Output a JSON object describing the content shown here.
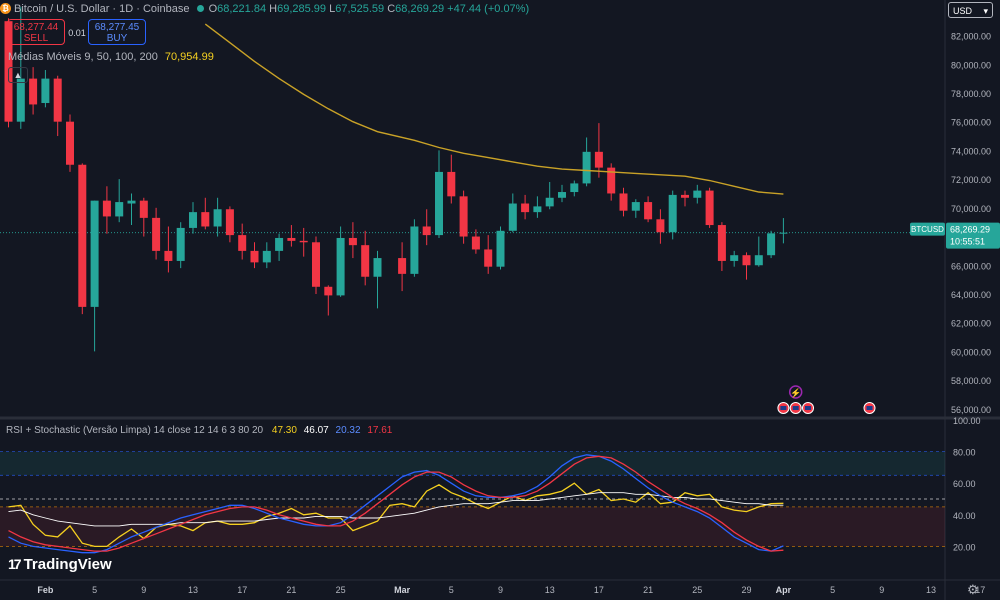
{
  "header": {
    "symbol_title": "Bitcoin / U.S. Dollar · 1D · Coinbase",
    "ohlc": [
      {
        "key": "O",
        "value": "68,221.84"
      },
      {
        "key": "H",
        "value": "69,285.99"
      },
      {
        "key": "L",
        "value": "67,525.59"
      },
      {
        "key": "C",
        "value": "68,269.29"
      }
    ],
    "change": "+47.44 (+0.07%)",
    "sell_price": "68,277.44",
    "sell_label": "SELL",
    "spread": "0.01",
    "buy_price": "68,277.45",
    "buy_label": "BUY",
    "ma_label": "Médias Móveis 9, 50, 100, 200",
    "ma_value": "70,954.99",
    "collapse_icon": "chevron-up-icon"
  },
  "currency": "USD",
  "price_tag": {
    "symbol": "BTCUSD",
    "price": "68,269.29",
    "countdown": "10:55:51"
  },
  "rsi_legend": {
    "label": "RSI + Stochastic (Versão Limpa) 14 close 12 14 6 3 80 20",
    "values": [
      {
        "value": "47.30",
        "color": "#f5d020"
      },
      {
        "value": "46.07",
        "color": "#ffffff"
      },
      {
        "value": "20.32",
        "color": "#2962ff"
      },
      {
        "value": "17.61",
        "color": "#f23645"
      }
    ]
  },
  "brand": "TradingView",
  "colors": {
    "up": "#26a69a",
    "down": "#f23645",
    "ma": "#c9a227",
    "bg": "#131722",
    "accent": "#2962ff"
  },
  "chart_data": [
    {
      "type": "candlestick",
      "title": "Bitcoin / U.S. Dollar · 1D · Coinbase",
      "y_ticks": [
        "82,000.00",
        "80,000.00",
        "78,000.00",
        "76,000.00",
        "74,000.00",
        "72,000.00",
        "70,000.00",
        "66,000.00",
        "64,000.00",
        "62,000.00",
        "60,000.00",
        "58,000.00",
        "56,000.00"
      ],
      "x_ticks": [
        {
          "label": "Feb",
          "date": "Feb 1"
        },
        {
          "label": "5",
          "date": "Feb 5"
        },
        {
          "label": "9",
          "date": "Feb 9"
        },
        {
          "label": "13",
          "date": "Feb 13"
        },
        {
          "label": "17",
          "date": "Feb 17"
        },
        {
          "label": "21",
          "date": "Feb 21"
        },
        {
          "label": "25",
          "date": "Feb 25"
        },
        {
          "label": "Mar",
          "date": "Mar 1"
        },
        {
          "label": "5",
          "date": "Mar 5"
        },
        {
          "label": "9",
          "date": "Mar 9"
        },
        {
          "label": "13",
          "date": "Mar 13"
        },
        {
          "label": "17",
          "date": "Mar 17"
        },
        {
          "label": "21",
          "date": "Mar 21"
        },
        {
          "label": "25",
          "date": "Mar 25"
        },
        {
          "label": "29",
          "date": "Mar 29"
        },
        {
          "label": "Apr",
          "date": "Apr 1"
        },
        {
          "label": "5",
          "date": "Apr 5"
        },
        {
          "label": "9",
          "date": "Apr 9"
        },
        {
          "label": "13",
          "date": "Apr 13"
        },
        {
          "label": "17",
          "date": "Apr 17"
        }
      ],
      "ylim": [
        55500,
        83500
      ],
      "last_price": 68269.29,
      "candles": [
        {
          "date": "Jan 29",
          "o": 83000,
          "h": 83200,
          "l": 75600,
          "c": 76000
        },
        {
          "date": "Jan 30",
          "o": 76000,
          "h": 84000,
          "l": 75500,
          "c": 79000
        },
        {
          "date": "Jan 31",
          "o": 79000,
          "h": 79800,
          "l": 76500,
          "c": 77200
        },
        {
          "date": "Feb 1",
          "o": 77300,
          "h": 79600,
          "l": 77000,
          "c": 79000
        },
        {
          "date": "Feb 2",
          "o": 79000,
          "h": 79200,
          "l": 75000,
          "c": 76000
        },
        {
          "date": "Feb 3",
          "o": 76000,
          "h": 76500,
          "l": 72500,
          "c": 73000
        },
        {
          "date": "Feb 4",
          "o": 73000,
          "h": 73100,
          "l": 62600,
          "c": 63100
        },
        {
          "date": "Feb 5",
          "o": 63100,
          "h": 70500,
          "l": 60000,
          "c": 70500
        },
        {
          "date": "Feb 6",
          "o": 70500,
          "h": 71500,
          "l": 68200,
          "c": 69400
        },
        {
          "date": "Feb 7",
          "o": 69400,
          "h": 72000,
          "l": 69000,
          "c": 70400
        },
        {
          "date": "Feb 8",
          "o": 70300,
          "h": 71000,
          "l": 68800,
          "c": 70500
        },
        {
          "date": "Feb 9",
          "o": 70500,
          "h": 70700,
          "l": 68000,
          "c": 69300
        },
        {
          "date": "Feb 10",
          "o": 69300,
          "h": 70000,
          "l": 66400,
          "c": 67000
        },
        {
          "date": "Feb 11",
          "o": 67000,
          "h": 68700,
          "l": 65500,
          "c": 66300
        },
        {
          "date": "Feb 12",
          "o": 66300,
          "h": 69000,
          "l": 65800,
          "c": 68600
        },
        {
          "date": "Feb 13",
          "o": 68600,
          "h": 70400,
          "l": 68200,
          "c": 69700
        },
        {
          "date": "Feb 14",
          "o": 69700,
          "h": 70700,
          "l": 68500,
          "c": 68700
        },
        {
          "date": "Feb 15",
          "o": 68700,
          "h": 70700,
          "l": 68000,
          "c": 69900
        },
        {
          "date": "Feb 16",
          "o": 69900,
          "h": 70100,
          "l": 67600,
          "c": 68100
        },
        {
          "date": "Feb 17",
          "o": 68100,
          "h": 68900,
          "l": 66400,
          "c": 67000
        },
        {
          "date": "Feb 18",
          "o": 67000,
          "h": 67600,
          "l": 65800,
          "c": 66200
        },
        {
          "date": "Feb 19",
          "o": 66200,
          "h": 67600,
          "l": 65800,
          "c": 67000
        },
        {
          "date": "Feb 20",
          "o": 67000,
          "h": 68200,
          "l": 66300,
          "c": 67900
        },
        {
          "date": "Feb 21",
          "o": 67900,
          "h": 68800,
          "l": 67300,
          "c": 67700
        },
        {
          "date": "Feb 22",
          "o": 67700,
          "h": 68600,
          "l": 66600,
          "c": 67600
        },
        {
          "date": "Feb 23",
          "o": 67600,
          "h": 68000,
          "l": 64000,
          "c": 64500
        },
        {
          "date": "Feb 24",
          "o": 64500,
          "h": 64600,
          "l": 62500,
          "c": 63900
        },
        {
          "date": "Feb 25",
          "o": 63900,
          "h": 68700,
          "l": 63800,
          "c": 67900
        },
        {
          "date": "Feb 26",
          "o": 67900,
          "h": 69000,
          "l": 66500,
          "c": 67400
        },
        {
          "date": "Feb 27",
          "o": 67400,
          "h": 68400,
          "l": 64600,
          "c": 65200
        },
        {
          "date": "Feb 28",
          "o": 65200,
          "h": 67000,
          "l": 63000,
          "c": 66500
        },
        {
          "date": "Mar 1",
          "o": 66500,
          "h": 67600,
          "l": 64200,
          "c": 65400
        },
        {
          "date": "Mar 2",
          "o": 65400,
          "h": 69200,
          "l": 65200,
          "c": 68700
        },
        {
          "date": "Mar 3",
          "o": 68700,
          "h": 69900,
          "l": 67400,
          "c": 68100
        },
        {
          "date": "Mar 4",
          "o": 68100,
          "h": 74000,
          "l": 67900,
          "c": 72500
        },
        {
          "date": "Mar 5",
          "o": 72500,
          "h": 73700,
          "l": 70300,
          "c": 70800
        },
        {
          "date": "Mar 6",
          "o": 70800,
          "h": 71200,
          "l": 67500,
          "c": 68000
        },
        {
          "date": "Mar 7",
          "o": 68000,
          "h": 68500,
          "l": 66800,
          "c": 67100
        },
        {
          "date": "Mar 8",
          "o": 67100,
          "h": 68100,
          "l": 65400,
          "c": 65900
        },
        {
          "date": "Mar 9",
          "o": 65900,
          "h": 68700,
          "l": 65700,
          "c": 68400
        },
        {
          "date": "Mar 10",
          "o": 68400,
          "h": 71000,
          "l": 68300,
          "c": 70300
        },
        {
          "date": "Mar 11",
          "o": 70300,
          "h": 70900,
          "l": 69200,
          "c": 69700
        },
        {
          "date": "Mar 12",
          "o": 69700,
          "h": 70800,
          "l": 69300,
          "c": 70100
        },
        {
          "date": "Mar 13",
          "o": 70100,
          "h": 71800,
          "l": 69900,
          "c": 70700
        },
        {
          "date": "Mar 14",
          "o": 70700,
          "h": 71600,
          "l": 70400,
          "c": 71100
        },
        {
          "date": "Mar 15",
          "o": 71100,
          "h": 71900,
          "l": 70800,
          "c": 71700
        },
        {
          "date": "Mar 16",
          "o": 71700,
          "h": 74900,
          "l": 71500,
          "c": 73900
        },
        {
          "date": "Mar 17",
          "o": 73900,
          "h": 75900,
          "l": 72100,
          "c": 72800
        },
        {
          "date": "Mar 18",
          "o": 72800,
          "h": 73100,
          "l": 70500,
          "c": 71000
        },
        {
          "date": "Mar 19",
          "o": 71000,
          "h": 71400,
          "l": 69400,
          "c": 69800
        },
        {
          "date": "Mar 20",
          "o": 69800,
          "h": 70600,
          "l": 69300,
          "c": 70400
        },
        {
          "date": "Mar 21",
          "o": 70400,
          "h": 70800,
          "l": 69000,
          "c": 69200
        },
        {
          "date": "Mar 22",
          "o": 69200,
          "h": 69900,
          "l": 67500,
          "c": 68300
        },
        {
          "date": "Mar 23",
          "o": 68300,
          "h": 71200,
          "l": 67800,
          "c": 70900
        },
        {
          "date": "Mar 24",
          "o": 70900,
          "h": 71200,
          "l": 70100,
          "c": 70700
        },
        {
          "date": "Mar 25",
          "o": 70700,
          "h": 71600,
          "l": 70300,
          "c": 71200
        },
        {
          "date": "Mar 26",
          "o": 71200,
          "h": 71400,
          "l": 68600,
          "c": 68800
        },
        {
          "date": "Mar 27",
          "o": 68800,
          "h": 69000,
          "l": 65600,
          "c": 66300
        },
        {
          "date": "Mar 28",
          "o": 66300,
          "h": 67000,
          "l": 65900,
          "c": 66700
        },
        {
          "date": "Mar 29",
          "o": 66700,
          "h": 66900,
          "l": 65000,
          "c": 66000
        },
        {
          "date": "Mar 30",
          "o": 66000,
          "h": 68000,
          "l": 65900,
          "c": 66700
        },
        {
          "date": "Mar 31",
          "o": 66700,
          "h": 68400,
          "l": 66500,
          "c": 68222
        },
        {
          "date": "Apr 1",
          "o": 68221.84,
          "h": 69285.99,
          "l": 67525.59,
          "c": 68269.29
        }
      ],
      "moving_average": {
        "name": "Médias Móveis 9, 50, 100, 200",
        "color": "#c9a227",
        "points": [
          {
            "date": "Feb 14",
            "v": 82800
          },
          {
            "date": "Feb 16",
            "v": 81500
          },
          {
            "date": "Feb 18",
            "v": 80200
          },
          {
            "date": "Feb 20",
            "v": 79000
          },
          {
            "date": "Feb 22",
            "v": 77900
          },
          {
            "date": "Feb 24",
            "v": 76900
          },
          {
            "date": "Feb 26",
            "v": 76000
          },
          {
            "date": "Feb 28",
            "v": 75300
          },
          {
            "date": "Mar 2",
            "v": 74700
          },
          {
            "date": "Mar 4",
            "v": 74200
          },
          {
            "date": "Mar 6",
            "v": 73800
          },
          {
            "date": "Mar 8",
            "v": 73500
          },
          {
            "date": "Mar 10",
            "v": 73200
          },
          {
            "date": "Mar 12",
            "v": 72900
          },
          {
            "date": "Mar 14",
            "v": 72700
          },
          {
            "date": "Mar 16",
            "v": 72600
          },
          {
            "date": "Mar 18",
            "v": 72500
          },
          {
            "date": "Mar 20",
            "v": 72400
          },
          {
            "date": "Mar 22",
            "v": 72300
          },
          {
            "date": "Mar 24",
            "v": 72200
          },
          {
            "date": "Mar 26",
            "v": 71900
          },
          {
            "date": "Mar 28",
            "v": 71500
          },
          {
            "date": "Mar 30",
            "v": 71100
          },
          {
            "date": "Apr 1",
            "v": 70955
          }
        ]
      },
      "event_markers": [
        {
          "date": "Apr 1",
          "icon": "flag-icon"
        },
        {
          "date": "Apr 2",
          "icon": "flag-icon"
        },
        {
          "date": "Apr 3",
          "icon": "flag-icon"
        },
        {
          "date": "Apr 8",
          "icon": "flag-icon"
        },
        {
          "date": "Apr 2",
          "icon": "lightning-icon"
        }
      ]
    },
    {
      "type": "line",
      "title": "RSI + Stochastic (Versão Limpa) 14 close 12 14 6 3 80 20",
      "y_ticks": [
        "100.00",
        "80.00",
        "60.00",
        "40.00",
        "20.00"
      ],
      "ylim": [
        0,
        100
      ],
      "levels": [
        80,
        65,
        50,
        45,
        20
      ],
      "series": [
        {
          "color": "#f5d020",
          "values": [
            45,
            46,
            34,
            27,
            26,
            33,
            22,
            20,
            20,
            26,
            31,
            25,
            32,
            34,
            33,
            30,
            35,
            36,
            34,
            34,
            35,
            39,
            41,
            44,
            40,
            41,
            38,
            38,
            30,
            33,
            36,
            46,
            47,
            45,
            55,
            59,
            54,
            51,
            47,
            44,
            48,
            52,
            49,
            52,
            53,
            55,
            60,
            53,
            56,
            49,
            50,
            48,
            54,
            47,
            48,
            54,
            52,
            53,
            45,
            43,
            42,
            45,
            47,
            47.3
          ]
        },
        {
          "color": "#ffffff",
          "values": [
            42,
            43,
            40,
            38,
            36,
            35,
            34,
            33,
            33,
            33,
            34,
            34,
            34,
            34,
            35,
            35,
            35,
            36,
            36,
            36,
            36,
            37,
            38,
            38,
            38,
            39,
            39,
            39,
            38,
            38,
            38,
            39,
            40,
            41,
            43,
            45,
            46,
            47,
            47,
            47,
            48,
            49,
            49,
            49,
            50,
            51,
            52,
            53,
            54,
            54,
            54,
            53,
            53,
            52,
            51,
            51,
            50,
            50,
            49,
            48,
            47,
            47,
            46,
            46.07
          ]
        },
        {
          "color": "#2962ff",
          "values": [
            26,
            22,
            20,
            19,
            18,
            17,
            16,
            16,
            18,
            22,
            26,
            29,
            32,
            35,
            38,
            40,
            42,
            44,
            46,
            46,
            44,
            41,
            38,
            36,
            34,
            33,
            33,
            35,
            40,
            46,
            52,
            58,
            64,
            67,
            68,
            65,
            60,
            55,
            52,
            51,
            51,
            52,
            54,
            58,
            64,
            71,
            76,
            78,
            77,
            74,
            69,
            63,
            57,
            52,
            48,
            45,
            42,
            38,
            32,
            26,
            22,
            18,
            17,
            20.32
          ]
        },
        {
          "color": "#f23645",
          "values": [
            30,
            26,
            23,
            21,
            20,
            19,
            18,
            17,
            17,
            19,
            22,
            25,
            28,
            31,
            34,
            37,
            40,
            42,
            44,
            45,
            45,
            43,
            40,
            38,
            36,
            34,
            33,
            33,
            36,
            41,
            47,
            53,
            59,
            64,
            67,
            67,
            64,
            59,
            55,
            52,
            51,
            51,
            52,
            55,
            60,
            66,
            72,
            76,
            77,
            76,
            72,
            67,
            61,
            56,
            51,
            47,
            44,
            40,
            35,
            29,
            24,
            20,
            17,
            17.61
          ]
        }
      ]
    }
  ]
}
